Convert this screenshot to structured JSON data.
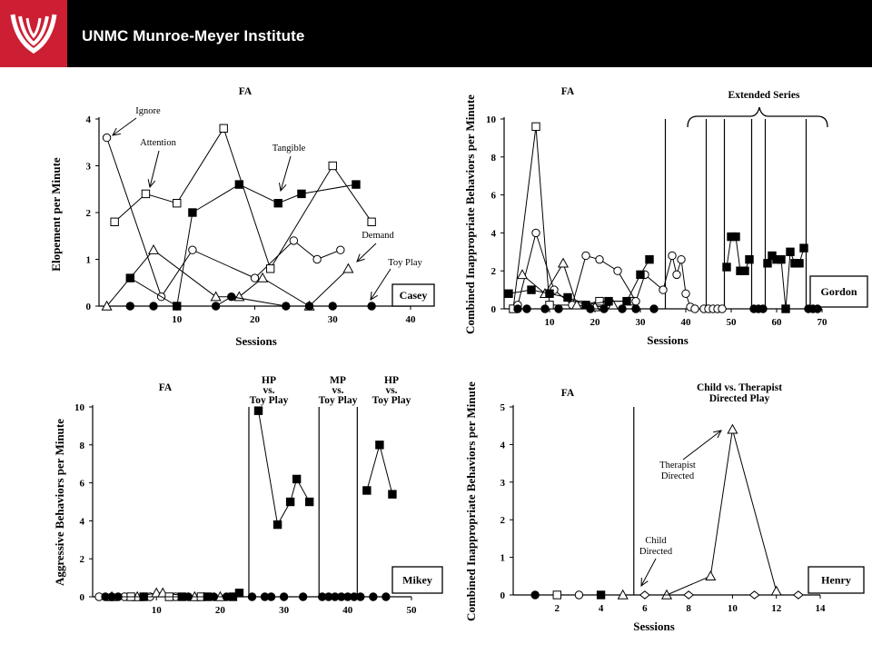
{
  "header": {
    "title": "UNMC Munroe-Meyer Institute",
    "accent_color": "#cc1f33",
    "logo_icon": "unmc-logo-icon"
  },
  "chart_data": [
    {
      "id": "casey",
      "type": "line",
      "panel_label": "Casey",
      "phase_labels": [
        "FA"
      ],
      "xlabel": "Sessions",
      "ylabel": "Elopement per Minute",
      "xlim": [
        0,
        40
      ],
      "ylim": [
        0,
        4
      ],
      "xticks": [
        10,
        20,
        30,
        40
      ],
      "yticks": [
        0,
        1,
        2,
        3,
        4
      ],
      "phase_lines": [],
      "series": [
        {
          "name": "Ignore",
          "marker": "circle-open",
          "x": [
            1,
            8,
            12,
            20,
            25,
            28,
            31
          ],
          "y": [
            3.6,
            0.2,
            1.2,
            0.6,
            1.4,
            1.0,
            1.2
          ]
        },
        {
          "name": "Attention",
          "marker": "square-open",
          "x": [
            2,
            6,
            10,
            16,
            22,
            30,
            35
          ],
          "y": [
            1.8,
            2.4,
            2.2,
            3.8,
            0.8,
            3.0,
            1.8
          ]
        },
        {
          "name": "Tangible",
          "marker": "square-filled",
          "x": [
            4,
            10,
            12,
            18,
            23,
            26,
            33
          ],
          "y": [
            0.6,
            0.0,
            2.0,
            2.6,
            2.2,
            2.4,
            2.6
          ]
        },
        {
          "name": "Demand",
          "marker": "triangle-open",
          "x": [
            1,
            7,
            15,
            18,
            21,
            27,
            32
          ],
          "y": [
            0.0,
            1.2,
            0.2,
            0.2,
            0.6,
            0.0,
            0.8
          ]
        },
        {
          "name": "Toy Play",
          "marker": "circle-filled",
          "x": [
            4,
            7,
            10,
            15,
            17,
            24,
            27,
            30,
            35
          ],
          "y": [
            0,
            0,
            0,
            0,
            0.2,
            0,
            0,
            0,
            0
          ]
        }
      ],
      "annotations": [
        "Ignore",
        "Attention",
        "Tangible",
        "Demand",
        "Toy Play"
      ]
    },
    {
      "id": "gordon",
      "type": "line",
      "panel_label": "Gordon",
      "phase_labels": [
        "FA",
        "Extended Series"
      ],
      "xlabel": "Sessions",
      "ylabel": "Combined Inappropriate Behaviors per Minute",
      "xlim": [
        0,
        70
      ],
      "ylim": [
        0,
        10
      ],
      "xticks": [
        10,
        20,
        30,
        40,
        50,
        60,
        70
      ],
      "yticks": [
        0,
        2,
        4,
        6,
        8,
        10
      ],
      "phase_lines": [
        35.5,
        44.5,
        48.5,
        54.5,
        57.5,
        66.5
      ],
      "series": [
        {
          "name": "square-open",
          "marker": "square-open",
          "x": [
            2,
            7,
            10,
            17,
            21,
            28
          ],
          "y": [
            0,
            9.6,
            0.2,
            0.2,
            0.4,
            0.4
          ]
        },
        {
          "name": "circle-open",
          "marker": "circle-open",
          "x": [
            3,
            7,
            11,
            15,
            18,
            21,
            25,
            29,
            31,
            35,
            37,
            38,
            39,
            40,
            41,
            42,
            44,
            45,
            46,
            47,
            48
          ],
          "y": [
            0.2,
            4.0,
            1.0,
            0.2,
            2.8,
            2.6,
            2.0,
            0.4,
            1.8,
            1.0,
            2.8,
            1.8,
            2.6,
            0.8,
            0.1,
            0,
            0,
            0,
            0,
            0,
            0
          ]
        },
        {
          "name": "triangle-open",
          "marker": "triangle-open",
          "x": [
            4,
            9,
            13,
            16,
            20,
            24
          ],
          "y": [
            1.8,
            0.8,
            2.4,
            0.2,
            0.1,
            0.2
          ]
        },
        {
          "name": "square-filled-fa",
          "marker": "square-filled",
          "x": [
            1,
            6,
            10,
            14,
            18,
            23,
            27,
            30,
            32
          ],
          "y": [
            0.8,
            1.0,
            0.8,
            0.6,
            0.2,
            0.4,
            0.4,
            1.8,
            2.6
          ]
        },
        {
          "name": "circle-filled",
          "marker": "circle-filled",
          "x": [
            3,
            5,
            9,
            12,
            19,
            22,
            26,
            29,
            33
          ],
          "y": [
            0,
            0,
            0,
            0,
            0,
            0,
            0,
            0,
            0
          ]
        },
        {
          "name": "square-filled-a",
          "marker": "square-filled",
          "x": [
            49,
            50,
            51,
            52,
            53,
            54
          ],
          "y": [
            2.2,
            3.8,
            3.8,
            2.0,
            2.0,
            2.6
          ]
        },
        {
          "name": "circle-filled-a",
          "marker": "circle-filled",
          "x": [
            55,
            56,
            57
          ],
          "y": [
            0,
            0,
            0
          ]
        },
        {
          "name": "square-filled-b",
          "marker": "square-filled",
          "x": [
            58,
            59,
            60,
            61,
            62,
            63,
            64,
            65,
            66
          ],
          "y": [
            2.4,
            2.8,
            2.6,
            2.6,
            0,
            3.0,
            2.4,
            2.4,
            3.2
          ]
        },
        {
          "name": "circle-filled-b",
          "marker": "circle-filled",
          "x": [
            67,
            68,
            69
          ],
          "y": [
            0,
            0,
            0
          ]
        }
      ]
    },
    {
      "id": "mikey",
      "type": "line",
      "panel_label": "Mikey",
      "phase_labels": [
        "FA",
        "HP vs. Toy Play",
        "MP vs. Toy Play",
        "HP vs. Toy Play"
      ],
      "xlabel": "",
      "ylabel": "Aggressive Behaviors per Minute",
      "xlim": [
        0,
        50
      ],
      "ylim": [
        0,
        10
      ],
      "xticks": [
        10,
        20,
        30,
        40,
        50
      ],
      "yticks": [
        0,
        2,
        4,
        6,
        8,
        10
      ],
      "phase_lines": [
        24.5,
        35.5,
        41.5
      ],
      "series": [
        {
          "name": "circle-open",
          "marker": "circle-open",
          "x": [
            1,
            5,
            9,
            13
          ],
          "y": [
            0,
            0,
            0,
            0
          ]
        },
        {
          "name": "triangle-open",
          "marker": "triangle-open",
          "x": [
            3,
            7,
            10,
            11,
            16,
            20
          ],
          "y": [
            0,
            0,
            0.2,
            0.2,
            0,
            0
          ]
        },
        {
          "name": "square-open",
          "marker": "square-open",
          "x": [
            6,
            12,
            17
          ],
          "y": [
            0,
            0,
            0
          ]
        },
        {
          "name": "square-filled-fa",
          "marker": "square-filled",
          "x": [
            8,
            14,
            18,
            22,
            23
          ],
          "y": [
            0,
            0,
            0,
            0,
            0.2
          ]
        },
        {
          "name": "circle-filled-fa",
          "marker": "circle-filled",
          "x": [
            2,
            3,
            4,
            8,
            15,
            19,
            21
          ],
          "y": [
            0,
            0,
            0,
            0,
            0,
            0,
            0
          ]
        },
        {
          "name": "hp-1",
          "marker": "square-filled",
          "x": [
            26,
            29,
            31,
            32,
            34
          ],
          "y": [
            9.8,
            3.8,
            5.0,
            6.2,
            5.0
          ]
        },
        {
          "name": "toyplay-1",
          "marker": "circle-filled",
          "x": [
            25,
            27,
            28,
            30,
            33
          ],
          "y": [
            0,
            0,
            0,
            0,
            0
          ]
        },
        {
          "name": "toyplay-2",
          "marker": "circle-filled",
          "x": [
            36,
            37,
            38,
            39,
            40,
            41
          ],
          "y": [
            0,
            0,
            0,
            0,
            0,
            0
          ]
        },
        {
          "name": "hp-2",
          "marker": "square-filled",
          "x": [
            43,
            45,
            47
          ],
          "y": [
            5.6,
            8.0,
            5.4
          ]
        },
        {
          "name": "toyplay-3",
          "marker": "circle-filled",
          "x": [
            42,
            44,
            46
          ],
          "y": [
            0,
            0,
            0
          ]
        }
      ]
    },
    {
      "id": "henry",
      "type": "line",
      "panel_label": "Henry",
      "phase_labels": [
        "FA",
        "Child vs. Therapist Directed Play"
      ],
      "xlabel": "Sessions",
      "ylabel": "Combined Inappropriate Behaviors per Minute",
      "xlim": [
        0,
        14
      ],
      "ylim": [
        0,
        5
      ],
      "xticks": [
        2,
        4,
        6,
        8,
        10,
        12,
        14
      ],
      "yticks": [
        0,
        1,
        2,
        3,
        4,
        5
      ],
      "phase_lines": [
        5.5
      ],
      "series": [
        {
          "name": "circle-filled",
          "marker": "circle-filled",
          "x": [
            1
          ],
          "y": [
            0
          ]
        },
        {
          "name": "square-open",
          "marker": "square-open",
          "x": [
            2
          ],
          "y": [
            0
          ]
        },
        {
          "name": "circle-open",
          "marker": "circle-open",
          "x": [
            3
          ],
          "y": [
            0
          ]
        },
        {
          "name": "square-filled",
          "marker": "square-filled",
          "x": [
            4
          ],
          "y": [
            0
          ]
        },
        {
          "name": "triangle-open",
          "marker": "triangle-open",
          "x": [
            5
          ],
          "y": [
            0
          ]
        },
        {
          "name": "Therapist Directed",
          "marker": "triangle-open",
          "x": [
            7,
            9,
            10,
            12
          ],
          "y": [
            0.0,
            0.5,
            4.4,
            0.1
          ]
        },
        {
          "name": "Child Directed",
          "marker": "diamond-open",
          "x": [
            6,
            8,
            11,
            13
          ],
          "y": [
            0,
            0,
            0,
            0
          ]
        }
      ],
      "annotations": [
        "Therapist Directed",
        "Child Directed"
      ]
    }
  ]
}
